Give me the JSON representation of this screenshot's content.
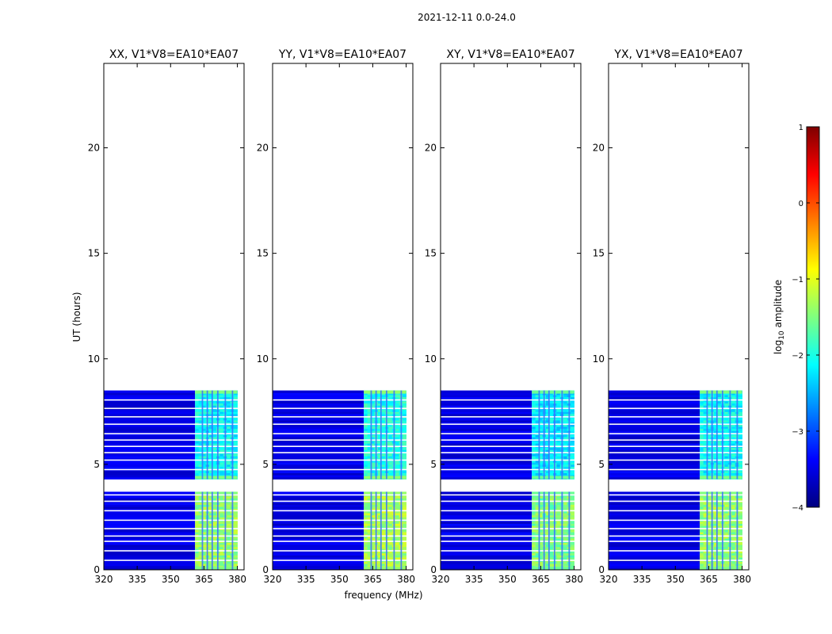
{
  "chart_data": {
    "type": "heatmap",
    "suptitle": "2021-12-11 0.0-24.0",
    "xlabel": "frequency (MHz)",
    "ylabel": "UT (hours)",
    "xlim": [
      320,
      383
    ],
    "ylim": [
      0,
      24
    ],
    "xticks": [
      "320",
      "335",
      "350",
      "365",
      "380"
    ],
    "yticks": [
      "0",
      "5",
      "10",
      "15",
      "20"
    ],
    "panels": [
      {
        "title": "XX, V1*V8=EA10*EA07",
        "rfi_band_level": [
          -2.1,
          -1.4,
          -1.8
        ]
      },
      {
        "title": "YY, V1*V8=EA10*EA07",
        "rfi_band_level": [
          -2.0,
          -1.3,
          -1.7
        ]
      },
      {
        "title": "XY, V1*V8=EA10*EA07",
        "rfi_band_level": [
          -2.2,
          -1.5,
          -1.9
        ]
      },
      {
        "title": "YX, V1*V8=EA10*EA07",
        "rfi_band_level": [
          -2.1,
          -1.4,
          -1.8
        ]
      }
    ],
    "data_time_ranges_hours": [
      [
        0.0,
        3.7
      ],
      [
        4.3,
        8.5
      ]
    ],
    "rfi_band_mhz": [
      361,
      380
    ],
    "background_log_amplitude": -3.5,
    "colorbar": {
      "label_prefix": "log",
      "label_sub": "10",
      "label_suffix": " amplitude",
      "range": [
        -4,
        1
      ],
      "ticks": [
        "1",
        "0",
        "−1",
        "−2",
        "−3",
        "−4"
      ],
      "colormap_stops": [
        "#00007f",
        "#0000ff",
        "#007fff",
        "#00ffff",
        "#7fff7f",
        "#ffff00",
        "#ff7f00",
        "#ff0000",
        "#7f0000"
      ]
    }
  }
}
